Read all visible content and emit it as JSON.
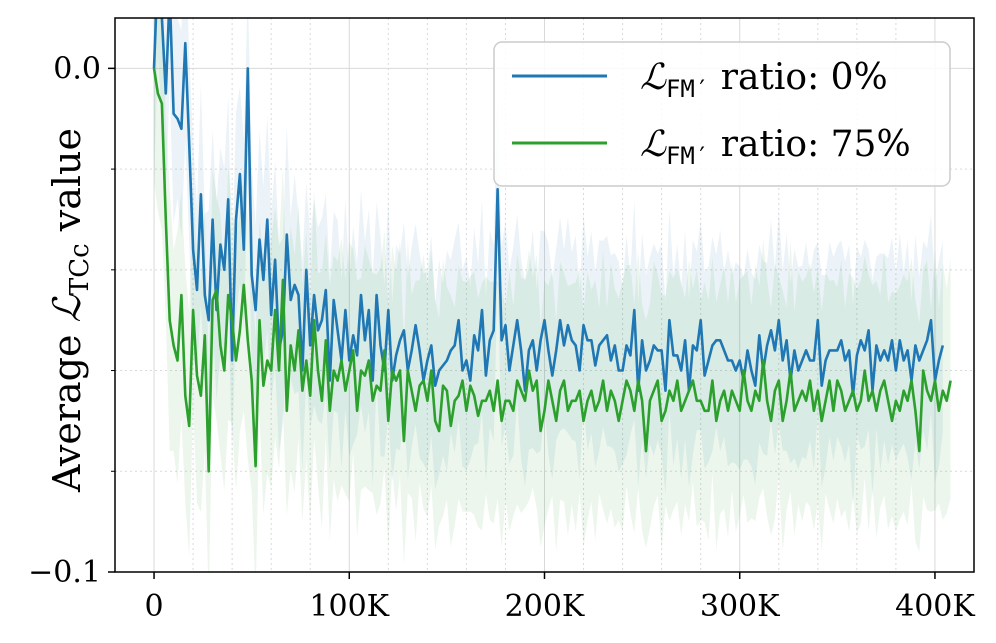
{
  "chart_data": {
    "type": "line",
    "title": "",
    "xlabel": "",
    "ylabel": "Average ℒTCc value",
    "ylabel_parts": {
      "prefix": "Average ",
      "symbol": "ℒ",
      "subscript": "TCc",
      "suffix": " value"
    },
    "xlim": [
      -20000,
      420000
    ],
    "ylim": [
      -0.1,
      0.01
    ],
    "x_ticks": [
      0,
      100000,
      200000,
      300000,
      400000
    ],
    "x_tick_labels": [
      "0",
      "100K",
      "200K",
      "300K",
      "400K"
    ],
    "y_ticks": [
      -0.1,
      0.0
    ],
    "y_tick_labels": [
      "−0.1",
      "0.0"
    ],
    "y_minor_ticks": [
      -0.08,
      -0.06,
      -0.04,
      -0.02
    ],
    "grid": true,
    "legend_position": "top-right",
    "series": [
      {
        "name": "ℒFM′ ratio: 0%",
        "legend": {
          "symbol": "ℒ",
          "subscript": "FM′",
          "text": " ratio: 0%"
        },
        "color": "#1f77b4",
        "band_color": "#1f77b4",
        "x_start": 0,
        "x_step": 2000,
        "values": [
          0.0,
          0.02,
          0.01,
          -0.005,
          0.015,
          -0.009,
          -0.01,
          -0.012,
          0.005,
          -0.015,
          -0.036,
          -0.044,
          -0.025,
          -0.045,
          -0.05,
          -0.03,
          -0.048,
          -0.035,
          -0.04,
          -0.026,
          -0.058,
          -0.03,
          -0.021,
          -0.036,
          0.0,
          -0.041,
          -0.048,
          -0.034,
          -0.042,
          -0.03,
          -0.049,
          -0.038,
          -0.056,
          -0.052,
          -0.033,
          -0.046,
          -0.043,
          -0.045,
          -0.06,
          -0.04,
          -0.055,
          -0.045,
          -0.052,
          -0.05,
          -0.044,
          -0.062,
          -0.046,
          -0.052,
          -0.058,
          -0.048,
          -0.058,
          -0.053,
          -0.057,
          -0.045,
          -0.054,
          -0.048,
          -0.062,
          -0.045,
          -0.055,
          -0.06,
          -0.048,
          -0.062,
          -0.057,
          -0.054,
          -0.052,
          -0.06,
          -0.056,
          -0.051,
          -0.056,
          -0.062,
          -0.058,
          -0.055,
          -0.063,
          -0.06,
          -0.059,
          -0.058,
          -0.056,
          -0.055,
          -0.05,
          -0.06,
          -0.058,
          -0.062,
          -0.053,
          -0.056,
          -0.048,
          -0.061,
          -0.054,
          -0.052,
          -0.024,
          -0.054,
          -0.051,
          -0.06,
          -0.055,
          -0.05,
          -0.056,
          -0.064,
          -0.056,
          -0.054,
          -0.06,
          -0.054,
          -0.05,
          -0.056,
          -0.061,
          -0.056,
          -0.05,
          -0.055,
          -0.051,
          -0.054,
          -0.055,
          -0.06,
          -0.051,
          -0.054,
          -0.054,
          -0.059,
          -0.055,
          -0.054,
          -0.053,
          -0.058,
          -0.055,
          -0.06,
          -0.06,
          -0.055,
          -0.057,
          -0.048,
          -0.064,
          -0.054,
          -0.06,
          -0.058,
          -0.055,
          -0.056,
          -0.056,
          -0.064,
          -0.05,
          -0.057,
          -0.057,
          -0.06,
          -0.054,
          -0.064,
          -0.055,
          -0.056,
          -0.05,
          -0.061,
          -0.058,
          -0.055,
          -0.054,
          -0.054,
          -0.056,
          -0.058,
          -0.058,
          -0.06,
          -0.058,
          -0.062,
          -0.056,
          -0.06,
          -0.063,
          -0.053,
          -0.06,
          -0.055,
          -0.052,
          -0.056,
          -0.05,
          -0.058,
          -0.054,
          -0.062,
          -0.056,
          -0.06,
          -0.058,
          -0.056,
          -0.058,
          -0.058,
          -0.05,
          -0.063,
          -0.058,
          -0.056,
          -0.056,
          -0.056,
          -0.054,
          -0.058,
          -0.056,
          -0.065,
          -0.057,
          -0.054,
          -0.056,
          -0.052,
          -0.064,
          -0.055,
          -0.058,
          -0.056,
          -0.058,
          -0.054,
          -0.06,
          -0.054,
          -0.058,
          -0.056,
          -0.062,
          -0.055,
          -0.058,
          -0.056,
          -0.054,
          -0.05,
          -0.062,
          -0.058,
          -0.055
        ]
      },
      {
        "name": "ℒFM′ ratio: 75%",
        "legend": {
          "symbol": "ℒ",
          "subscript": "FM′",
          "text": " ratio: 75%"
        },
        "color": "#2ca02c",
        "band_color": "#2ca02c",
        "x_start": 0,
        "x_step": 2000,
        "values": [
          0.0,
          -0.005,
          -0.007,
          -0.03,
          -0.05,
          -0.055,
          -0.058,
          -0.045,
          -0.065,
          -0.071,
          -0.048,
          -0.061,
          -0.065,
          -0.053,
          -0.08,
          -0.046,
          -0.044,
          -0.055,
          -0.06,
          -0.045,
          -0.05,
          -0.058,
          -0.052,
          -0.043,
          -0.054,
          -0.062,
          -0.079,
          -0.05,
          -0.063,
          -0.058,
          -0.06,
          -0.048,
          -0.06,
          -0.042,
          -0.068,
          -0.055,
          -0.06,
          -0.052,
          -0.064,
          -0.058,
          -0.065,
          -0.05,
          -0.06,
          -0.066,
          -0.054,
          -0.068,
          -0.06,
          -0.062,
          -0.058,
          -0.064,
          -0.06,
          -0.056,
          -0.068,
          -0.06,
          -0.061,
          -0.058,
          -0.066,
          -0.063,
          -0.064,
          -0.056,
          -0.07,
          -0.06,
          -0.062,
          -0.06,
          -0.074,
          -0.06,
          -0.064,
          -0.068,
          -0.063,
          -0.062,
          -0.066,
          -0.06,
          -0.07,
          -0.072,
          -0.063,
          -0.064,
          -0.071,
          -0.066,
          -0.065,
          -0.062,
          -0.068,
          -0.063,
          -0.065,
          -0.069,
          -0.066,
          -0.066,
          -0.064,
          -0.068,
          -0.062,
          -0.07,
          -0.066,
          -0.066,
          -0.068,
          -0.062,
          -0.064,
          -0.066,
          -0.06,
          -0.064,
          -0.062,
          -0.072,
          -0.068,
          -0.062,
          -0.066,
          -0.07,
          -0.064,
          -0.062,
          -0.068,
          -0.066,
          -0.066,
          -0.064,
          -0.07,
          -0.066,
          -0.064,
          -0.068,
          -0.066,
          -0.062,
          -0.068,
          -0.064,
          -0.066,
          -0.07,
          -0.066,
          -0.062,
          -0.064,
          -0.068,
          -0.062,
          -0.066,
          -0.076,
          -0.066,
          -0.064,
          -0.062,
          -0.07,
          -0.068,
          -0.064,
          -0.066,
          -0.062,
          -0.068,
          -0.066,
          -0.064,
          -0.062,
          -0.066,
          -0.066,
          -0.068,
          -0.068,
          -0.062,
          -0.07,
          -0.066,
          -0.064,
          -0.068,
          -0.064,
          -0.066,
          -0.068,
          -0.06,
          -0.066,
          -0.068,
          -0.064,
          -0.066,
          -0.058,
          -0.066,
          -0.07,
          -0.064,
          -0.062,
          -0.07,
          -0.066,
          -0.06,
          -0.068,
          -0.066,
          -0.064,
          -0.066,
          -0.062,
          -0.068,
          -0.064,
          -0.07,
          -0.066,
          -0.062,
          -0.068,
          -0.062,
          -0.064,
          -0.068,
          -0.066,
          -0.064,
          -0.068,
          -0.066,
          -0.06,
          -0.066,
          -0.064,
          -0.068,
          -0.064,
          -0.062,
          -0.066,
          -0.07,
          -0.066,
          -0.068,
          -0.064,
          -0.066,
          -0.062,
          -0.068,
          -0.076,
          -0.06,
          -0.064,
          -0.066,
          -0.062,
          -0.068,
          -0.064,
          -0.066,
          -0.062
        ]
      }
    ]
  }
}
